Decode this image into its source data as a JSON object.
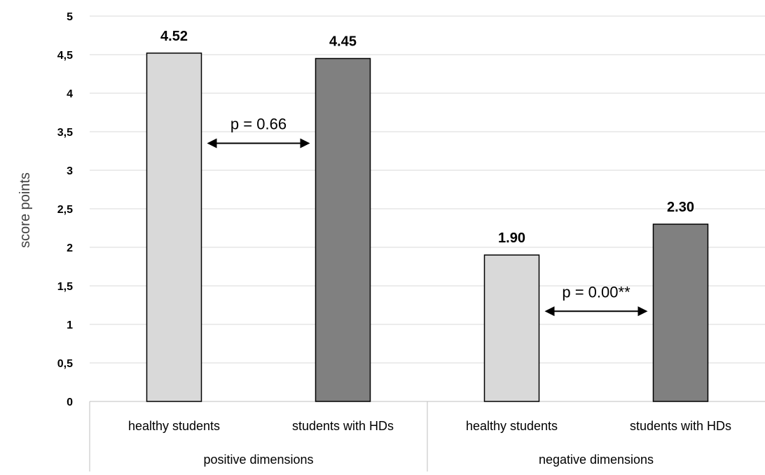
{
  "chart_data": {
    "type": "bar",
    "title": "",
    "ylabel": "score points",
    "ylim": [
      0,
      5
    ],
    "yticks": [
      "0",
      "0,5",
      "1",
      "1,5",
      "2",
      "2,5",
      "3",
      "3,5",
      "4",
      "4,5",
      "5"
    ],
    "grid": true,
    "groups": [
      {
        "label": "positive dimensions",
        "bars": [
          {
            "category": "healthy students",
            "value": 4.52,
            "label": "4.52",
            "color": "#d9d9d9"
          },
          {
            "category": "students with HDs",
            "value": 4.45,
            "label": "4.45",
            "color": "#808080"
          }
        ],
        "annotation": "p = 0.66"
      },
      {
        "label": "negative dimensions",
        "bars": [
          {
            "category": "healthy students",
            "value": 1.9,
            "label": "1.90",
            "color": "#d9d9d9"
          },
          {
            "category": "students with HDs",
            "value": 2.3,
            "label": "2.30",
            "color": "#808080"
          }
        ],
        "annotation": "p = 0.00**"
      }
    ]
  }
}
